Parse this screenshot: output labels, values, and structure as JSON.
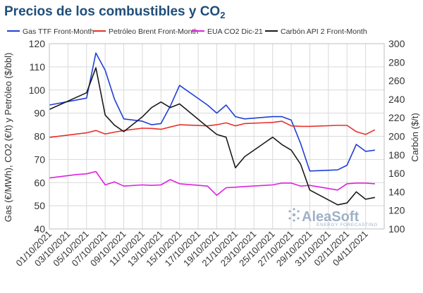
{
  "chart_data": {
    "type": "line",
    "title": "Precios de los combustibles y CO",
    "title_subscript": "2",
    "ylabel_left": "Gas (€/MWh), CO2 (€/t)  y Petróleo ($/bbl)",
    "ylabel_right": "Carbón ($/t)",
    "ylim_left": [
      40,
      120
    ],
    "ylim_right": [
      100,
      300
    ],
    "yticks_left": [
      40,
      50,
      60,
      70,
      80,
      90,
      100,
      110,
      120
    ],
    "yticks_right": [
      100,
      120,
      140,
      160,
      180,
      200,
      220,
      240,
      260,
      280,
      300
    ],
    "x_tick_labels": [
      "01/10/2021",
      "03/10/2021",
      "05/10/2021",
      "07/10/2021",
      "09/10/2021",
      "11/10/2021",
      "13/10/2021",
      "15/10/2021",
      "17/10/2021",
      "19/10/2021",
      "21/10/2021",
      "23/10/2021",
      "25/10/2021",
      "27/10/2021",
      "29/10/2021",
      "31/10/2021",
      "02/11/2021",
      "04/11/2021"
    ],
    "x_range": [
      0,
      36
    ],
    "grid": true,
    "legend_position": "top",
    "series": [
      {
        "name": "Gas TTF Front-Month",
        "axis": "left",
        "color": "#1f3fd8",
        "x": [
          0,
          4,
          5,
          6,
          7,
          8,
          10,
          11,
          12,
          13,
          14,
          17,
          18,
          19,
          20,
          21,
          24,
          25,
          26,
          27,
          28,
          31,
          32,
          33,
          34,
          35
        ],
        "values": [
          93.5,
          96.5,
          116,
          108.5,
          96,
          87.5,
          86.5,
          85,
          85.5,
          93,
          102,
          93.5,
          90,
          93.5,
          88.5,
          87.5,
          88.5,
          88.5,
          87,
          77,
          65,
          65.5,
          67.5,
          76.5,
          73.5,
          74
        ]
      },
      {
        "name": "Petróleo Brent Front-Month",
        "axis": "left",
        "color": "#e8302a",
        "x": [
          0,
          3,
          4,
          5,
          6,
          7,
          8,
          10,
          11,
          12,
          13,
          14,
          17,
          18,
          19,
          20,
          21,
          24,
          25,
          26,
          27,
          28,
          31,
          32,
          33,
          34,
          35
        ],
        "values": [
          79.5,
          81,
          81.5,
          82.5,
          81,
          81.8,
          82.5,
          83.5,
          83.4,
          83,
          84,
          85,
          84.5,
          85,
          85.8,
          84.5,
          85.5,
          86,
          86.5,
          84.5,
          84.3,
          84.3,
          84.7,
          84.7,
          82,
          80.8,
          82.8
        ]
      },
      {
        "name": "EUA CO2 Dic-21",
        "axis": "left",
        "color": "#e020e0",
        "x": [
          0,
          3,
          4,
          5,
          6,
          7,
          8,
          10,
          11,
          12,
          13,
          14,
          17,
          18,
          19,
          20,
          21,
          24,
          25,
          26,
          27,
          28,
          31,
          32,
          33,
          34,
          35
        ],
        "values": [
          62,
          63.5,
          63.8,
          64.8,
          59,
          60.3,
          58.5,
          59,
          58.8,
          59,
          61.3,
          59.5,
          58.5,
          54.5,
          57.8,
          58,
          58.3,
          59,
          59.8,
          59.8,
          58.5,
          58.8,
          56.8,
          59.5,
          59.8,
          59.8,
          59.5
        ]
      },
      {
        "name": "Carbón API 2 Front-Month",
        "axis": "right",
        "color": "#1a1a1a",
        "x": [
          0,
          4,
          5,
          6,
          7,
          8,
          10,
          11,
          12,
          13,
          14,
          17,
          18,
          19,
          20,
          21,
          24,
          25,
          26,
          27,
          28,
          31,
          32,
          33,
          34,
          35
        ],
        "values": [
          229,
          247,
          274,
          223,
          212,
          205,
          221,
          231,
          237,
          231,
          235,
          210,
          202,
          199,
          166,
          178,
          199,
          191,
          185,
          170,
          142,
          126,
          128,
          140,
          132,
          134
        ]
      }
    ]
  },
  "logo": {
    "main": "AleaSoft",
    "sub": "ENERGY FORECASTING",
    "color": "#9fb1c8"
  }
}
